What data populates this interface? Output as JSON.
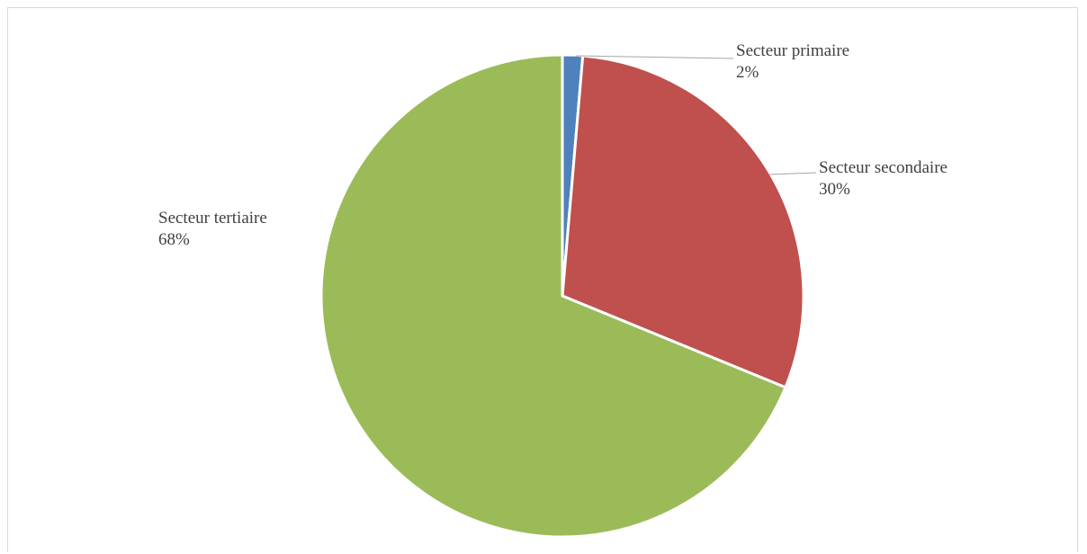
{
  "chart_data": {
    "type": "pie",
    "categories": [
      "Secteur primaire",
      "Secteur secondaire",
      "Secteur tertiaire"
    ],
    "values": [
      2,
      30,
      68
    ],
    "value_labels": [
      "2%",
      "30%",
      "68%"
    ],
    "colors": [
      "#4f81bd",
      "#c0504d",
      "#9bbb59"
    ],
    "title": "",
    "legend": "none",
    "data_labels": "category and percentage, outside with leader lines"
  }
}
